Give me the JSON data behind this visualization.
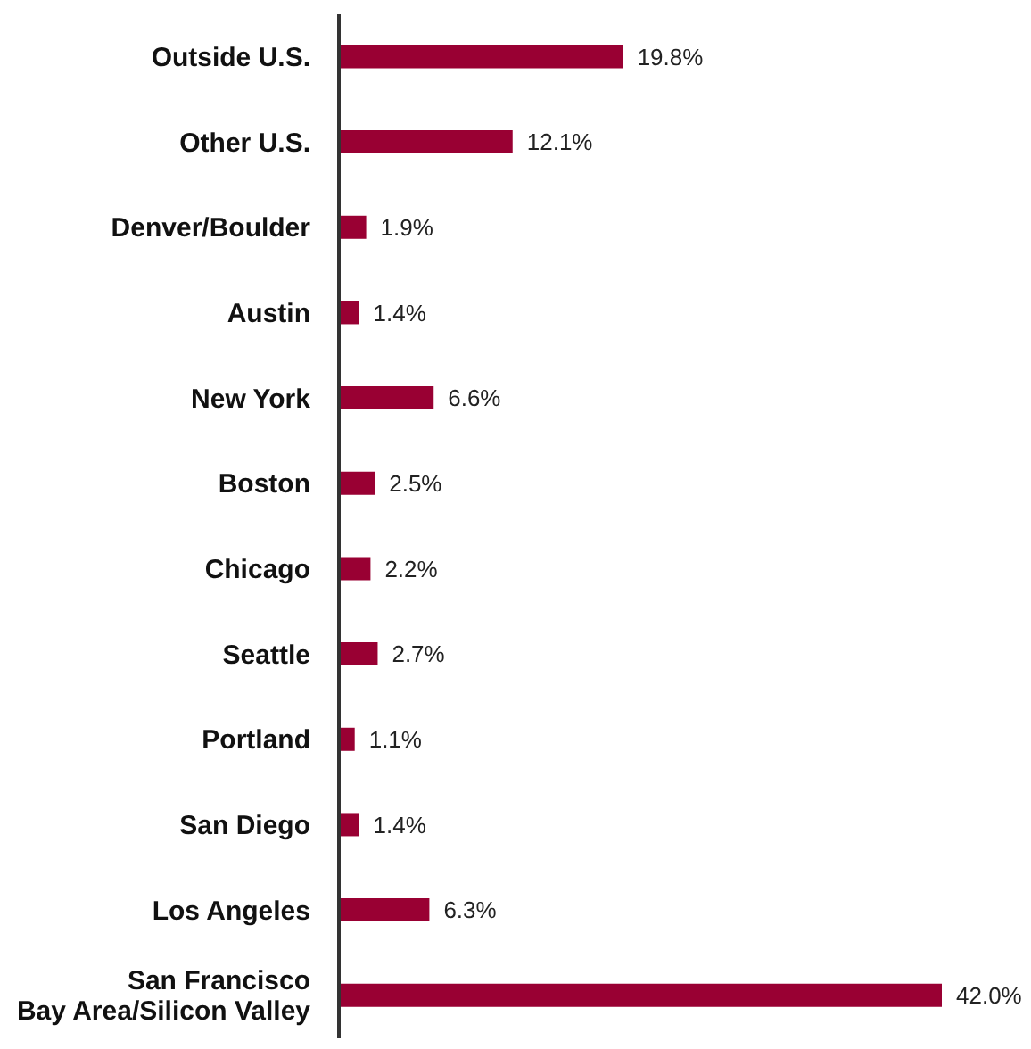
{
  "chart_data": {
    "type": "bar",
    "orientation": "horizontal",
    "categories": [
      "Outside U.S.",
      "Other U.S.",
      "Denver/Boulder",
      "Austin",
      "New York",
      "Boston",
      "Chicago",
      "Seattle",
      "Portland",
      "San Diego",
      "Los Angeles",
      "San Francisco\nBay Area/Silicon Valley"
    ],
    "values": [
      19.8,
      12.1,
      1.9,
      1.4,
      6.6,
      2.5,
      2.2,
      2.7,
      1.1,
      1.4,
      6.3,
      42.0
    ],
    "value_labels": [
      "19.8%",
      "12.1%",
      "1.9%",
      "1.4%",
      "6.6%",
      "2.5%",
      "2.2%",
      "2.7%",
      "1.1%",
      "1.4%",
      "6.3%",
      "42.0%"
    ],
    "color": "#990033"
  }
}
